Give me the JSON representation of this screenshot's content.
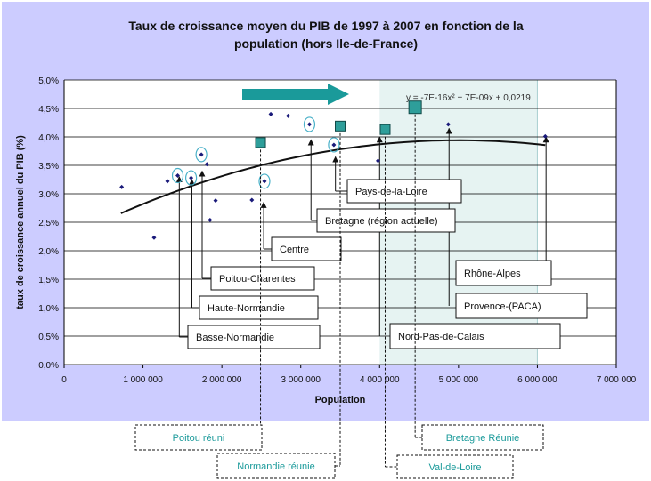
{
  "chart_data": {
    "type": "scatter",
    "title_line1": "Taux de croissance moyen du PIB de 1997 à 2007 en fonction de la",
    "title_line2": "population (hors Ile-de-France)",
    "xlabel": "Population",
    "ylabel": "taux de croissance annuel du PIB (%)",
    "xlim": [
      0,
      7000000
    ],
    "ylim": [
      0,
      0.05
    ],
    "x_ticks": [
      0,
      1000000,
      2000000,
      3000000,
      4000000,
      5000000,
      6000000,
      7000000
    ],
    "x_tick_labels": [
      "0",
      "1 000 000",
      "2 000 000",
      "3 000 000",
      "4 000 000",
      "5 000 000",
      "6 000 000",
      "7 000 000"
    ],
    "y_ticks": [
      0,
      0.005,
      0.01,
      0.015,
      0.02,
      0.025,
      0.03,
      0.035,
      0.04,
      0.045,
      0.05
    ],
    "y_tick_labels": [
      "0,0%",
      "0,5%",
      "1,0%",
      "1,5%",
      "2,0%",
      "2,5%",
      "3,0%",
      "3,5%",
      "4,0%",
      "4,5%",
      "5,0%"
    ],
    "grid": true,
    "shaded_band_x": [
      4000000,
      6000000
    ],
    "trendline": {
      "equation_label": "y = -7E-16x² + 7E-09x + 0,0219",
      "coefficients": [
        -7e-16,
        7e-09,
        0.0219
      ],
      "x_range": [
        720000,
        6100000
      ]
    },
    "regions": [
      {
        "x": 730000,
        "y": 0.0312
      },
      {
        "x": 1140000,
        "y": 0.0223
      },
      {
        "x": 1310000,
        "y": 0.0322
      },
      {
        "x": 1440000,
        "y": 0.0332
      },
      {
        "x": 1610000,
        "y": 0.0328
      },
      {
        "x": 1740000,
        "y": 0.0369
      },
      {
        "x": 1810000,
        "y": 0.0352
      },
      {
        "x": 1850000,
        "y": 0.0254
      },
      {
        "x": 1920000,
        "y": 0.0288
      },
      {
        "x": 2380000,
        "y": 0.0289
      },
      {
        "x": 2540000,
        "y": 0.0322
      },
      {
        "x": 2620000,
        "y": 0.044
      },
      {
        "x": 2840000,
        "y": 0.0437
      },
      {
        "x": 3110000,
        "y": 0.0422
      },
      {
        "x": 3420000,
        "y": 0.0386
      },
      {
        "x": 3980000,
        "y": 0.0358
      },
      {
        "x": 4870000,
        "y": 0.0422
      },
      {
        "x": 6100000,
        "y": 0.0401
      }
    ],
    "circled_points": [
      {
        "x": 1440000,
        "y": 0.0332
      },
      {
        "x": 1610000,
        "y": 0.0328
      },
      {
        "x": 1740000,
        "y": 0.0369
      },
      {
        "x": 2540000,
        "y": 0.0322
      },
      {
        "x": 3110000,
        "y": 0.0422
      },
      {
        "x": 3420000,
        "y": 0.0386
      }
    ],
    "merged_regions": [
      {
        "x": 2490000,
        "y": 0.039
      },
      {
        "x": 3500000,
        "y": 0.0419
      },
      {
        "x": 4070000,
        "y": 0.0413
      },
      {
        "x": 4450000,
        "y": 0.0452
      }
    ],
    "region_labels": [
      {
        "label": "Basse-Normandie",
        "target": {
          "x": 1460000,
          "y": 0.033
        }
      },
      {
        "label": "Haute-Normandie",
        "target": {
          "x": 1620000,
          "y": 0.0325
        }
      },
      {
        "label": "Poitou-Charentes",
        "target": {
          "x": 1750000,
          "y": 0.034
        }
      },
      {
        "label": "Centre",
        "target": {
          "x": 2530000,
          "y": 0.0285
        }
      },
      {
        "label": "Bretagne (région actuelle)",
        "target": {
          "x": 3130000,
          "y": 0.0395
        }
      },
      {
        "label": "Pays-de-la-Loire",
        "target": {
          "x": 3440000,
          "y": 0.0365
        }
      },
      {
        "label": "Nord-Pas-de-Calais",
        "target": {
          "x": 4000000,
          "y": 0.04
        }
      },
      {
        "label": "Provence-(PACA)",
        "target": {
          "x": 4880000,
          "y": 0.0415
        }
      },
      {
        "label": "Rhône-Alpes",
        "target": {
          "x": 6110000,
          "y": 0.04
        }
      }
    ],
    "merged_labels": [
      {
        "label": "Poitou réuni",
        "target_x": 2490000
      },
      {
        "label": "Normandie réunie",
        "target_x": 3500000
      },
      {
        "label": "Val-de-Loire",
        "target_x": 4070000
      },
      {
        "label": "Bretagne Réunie",
        "target_x": 4450000
      }
    ]
  },
  "colors": {
    "plot_background": "#ffffff",
    "frame_background": "#ccccff",
    "shaded_band": "#e6f3f2",
    "point": "#1a1a7a",
    "merged_square": "#2e9e9a",
    "arrow": "#1a9a9a",
    "circle": "#48b0c8",
    "trendline": "#111111",
    "teal_text": "#1a9a9a"
  }
}
